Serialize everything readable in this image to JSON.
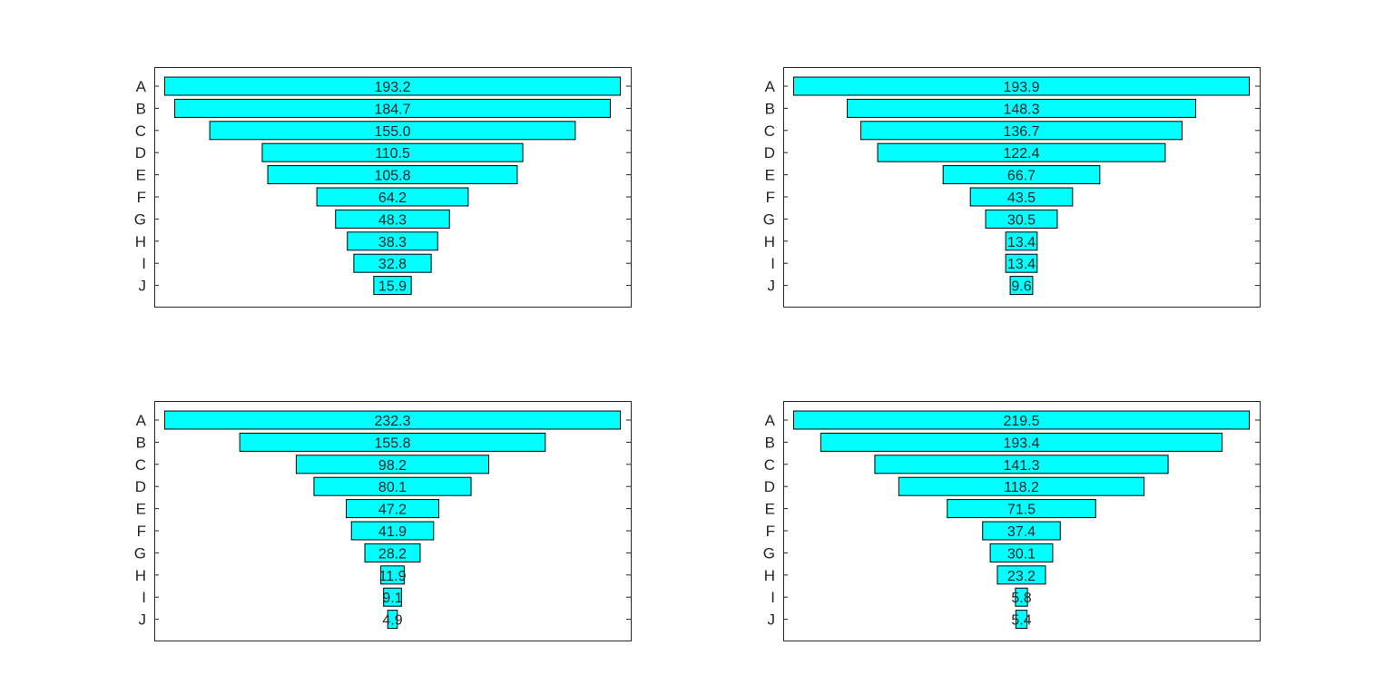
{
  "chart_data": [
    {
      "type": "bar",
      "orientation": "horizontal-funnel",
      "categories": [
        "A",
        "B",
        "C",
        "D",
        "E",
        "F",
        "G",
        "H",
        "I",
        "J"
      ],
      "values": [
        193.2,
        184.7,
        155.0,
        110.5,
        105.8,
        64.2,
        48.3,
        38.3,
        32.8,
        15.9
      ],
      "labels": [
        "193.2",
        "184.7",
        "155.0",
        "110.5",
        "105.8",
        "64.2",
        "48.3",
        "38.3",
        "32.8",
        "15.9"
      ],
      "bar_color": "#00ffff",
      "edge_color": "#000000",
      "grid": false
    },
    {
      "type": "bar",
      "orientation": "horizontal-funnel",
      "categories": [
        "A",
        "B",
        "C",
        "D",
        "E",
        "F",
        "G",
        "H",
        "I",
        "J"
      ],
      "values": [
        193.9,
        148.3,
        136.7,
        122.4,
        66.7,
        43.5,
        30.5,
        13.4,
        13.4,
        9.6
      ],
      "labels": [
        "193.9",
        "148.3",
        "136.7",
        "122.4",
        "66.7",
        "43.5",
        "30.5",
        "13.4",
        "13.4",
        "9.6"
      ],
      "bar_color": "#00ffff",
      "edge_color": "#000000",
      "grid": false
    },
    {
      "type": "bar",
      "orientation": "horizontal-funnel",
      "categories": [
        "A",
        "B",
        "C",
        "D",
        "E",
        "F",
        "G",
        "H",
        "I",
        "J"
      ],
      "values": [
        232.3,
        155.8,
        98.2,
        80.1,
        47.2,
        41.9,
        28.2,
        11.9,
        9.1,
        4.9
      ],
      "labels": [
        "232.3",
        "155.8",
        "98.2",
        "80.1",
        "47.2",
        "41.9",
        "28.2",
        "11.9",
        "9.1",
        "4.9"
      ],
      "bar_color": "#00ffff",
      "edge_color": "#000000",
      "grid": false
    },
    {
      "type": "bar",
      "orientation": "horizontal-funnel",
      "categories": [
        "A",
        "B",
        "C",
        "D",
        "E",
        "F",
        "G",
        "H",
        "I",
        "J"
      ],
      "values": [
        219.5,
        193.4,
        141.3,
        118.2,
        71.5,
        37.4,
        30.1,
        23.2,
        5.8,
        5.4
      ],
      "labels": [
        "219.5",
        "193.4",
        "141.3",
        "118.2",
        "71.5",
        "37.4",
        "30.1",
        "23.2",
        "5.8",
        "5.4"
      ],
      "bar_color": "#00ffff",
      "edge_color": "#000000",
      "grid": false
    }
  ]
}
